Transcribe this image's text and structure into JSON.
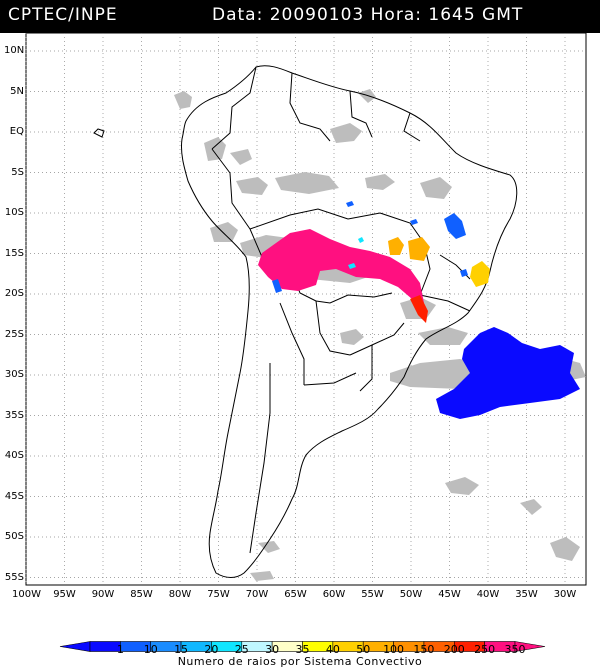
{
  "header": {
    "source": "CPTEC/INPE",
    "timestamp": "Data: 20090103 Hora: 1645 GMT"
  },
  "map": {
    "lat_labels": [
      "10N",
      "5N",
      "EQ",
      "5S",
      "10S",
      "15S",
      "20S",
      "25S",
      "30S",
      "35S",
      "40S",
      "45S",
      "50S",
      "55S"
    ],
    "lon_labels": [
      "100W",
      "95W",
      "90W",
      "85W",
      "80W",
      "75W",
      "70W",
      "65W",
      "60W",
      "55W",
      "50W",
      "45W",
      "40W",
      "35W",
      "30W"
    ],
    "cloud_color": "#bdbdbd",
    "grid": "dotted"
  },
  "legend": {
    "ticks": [
      "1",
      "10",
      "15",
      "20",
      "25",
      "30",
      "35",
      "40",
      "50",
      "100",
      "150",
      "200",
      "250",
      "350"
    ],
    "colors": [
      "#0a0aff",
      "#1060ff",
      "#1a8cff",
      "#10b8ff",
      "#10e6ff",
      "#bff7ff",
      "#ffffc8",
      "#ffff00",
      "#ffd000",
      "#ffb000",
      "#ff9000",
      "#ff6000",
      "#ff2000",
      "#ff1080"
    ],
    "caption": "Numero de raios por Sistema Convectivo"
  }
}
